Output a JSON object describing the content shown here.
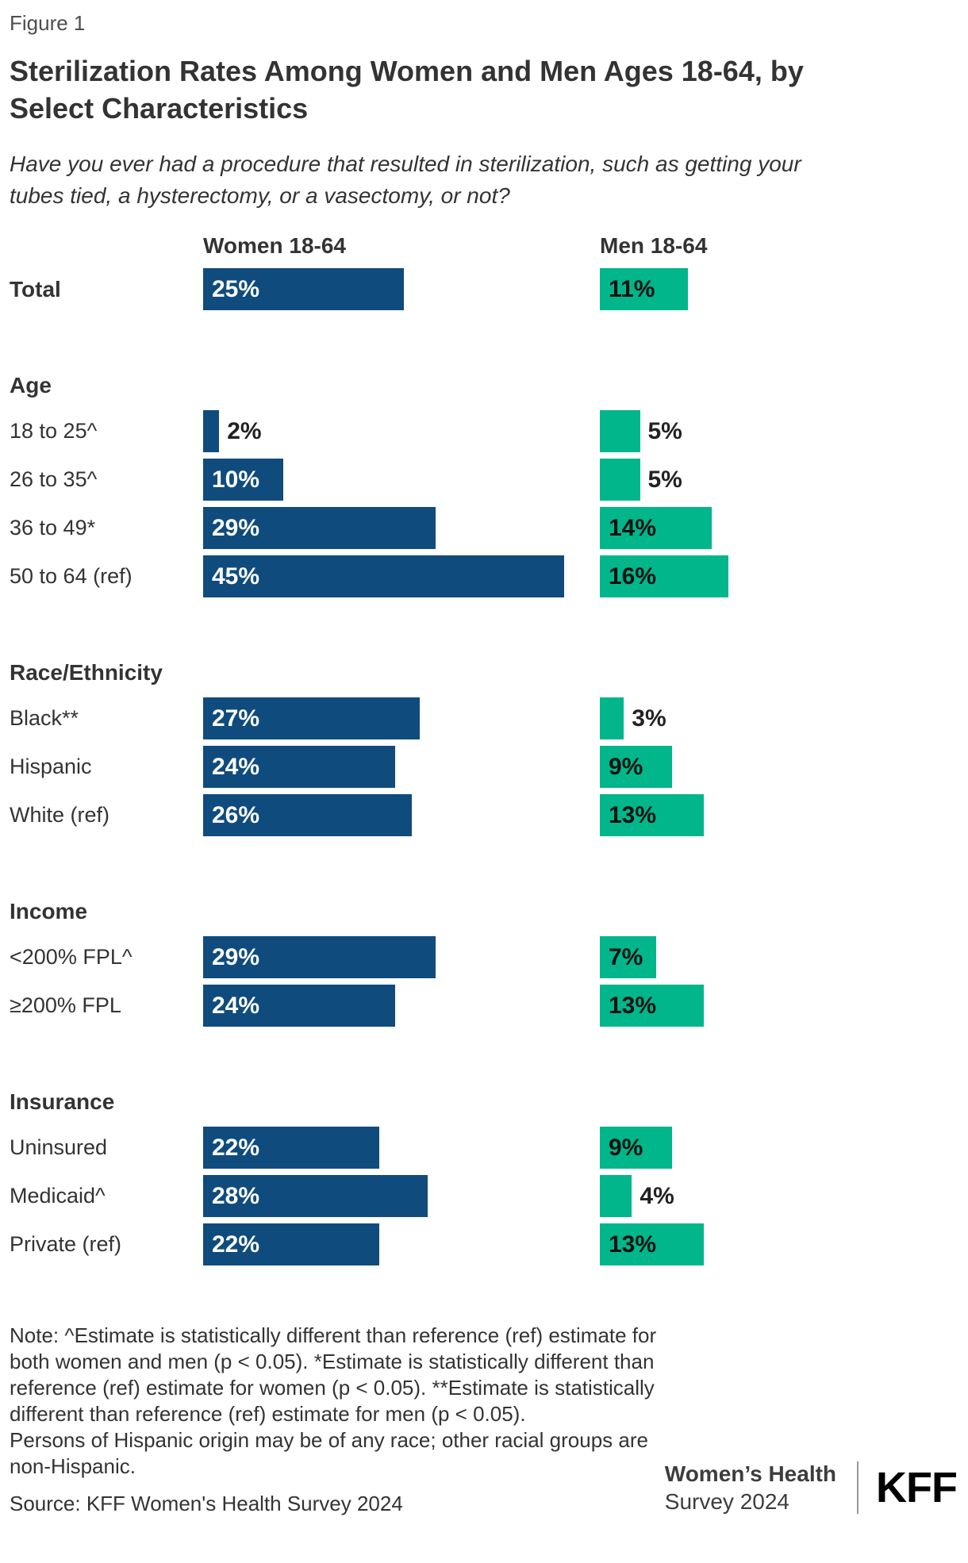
{
  "header": {
    "figure_label": "Figure 1",
    "title_lines": [
      "Sterilization Rates Among Women and Men Ages 18-64, by",
      "Select Characteristics"
    ],
    "subtitle_lines": [
      "Have you ever had a procedure that resulted in sterilization, such as getting your",
      "tubes tied, a hysterectomy, or a vasectomy, or not?"
    ]
  },
  "chart_data": {
    "type": "bar",
    "orientation": "horizontal",
    "unit": "%",
    "value_range": [
      0,
      45
    ],
    "grid": false,
    "legend_position": "column-headers-top",
    "series": [
      {
        "name": "Women 18-64",
        "color": "#0F4B7D"
      },
      {
        "name": "Men 18-64",
        "color": "#00B68A"
      }
    ],
    "sections": [
      {
        "header": null,
        "rows": [
          {
            "label": "Total",
            "bold": true,
            "values": [
              25,
              11
            ]
          }
        ]
      },
      {
        "header": "Age",
        "rows": [
          {
            "label": "18 to 25^",
            "values": [
              2,
              5
            ]
          },
          {
            "label": "26 to 35^",
            "values": [
              10,
              5
            ]
          },
          {
            "label": "36 to 49*",
            "values": [
              29,
              14
            ]
          },
          {
            "label": "50 to 64 (ref)",
            "values": [
              45,
              16
            ]
          }
        ]
      },
      {
        "header": "Race/Ethnicity",
        "rows": [
          {
            "label": "Black**",
            "values": [
              27,
              3
            ]
          },
          {
            "label": "Hispanic",
            "values": [
              24,
              9
            ]
          },
          {
            "label": "White (ref)",
            "values": [
              26,
              13
            ]
          }
        ]
      },
      {
        "header": "Income",
        "rows": [
          {
            "label": "<200% FPL^",
            "values": [
              29,
              7
            ]
          },
          {
            "label": "≥200% FPL",
            "values": [
              24,
              13
            ]
          }
        ]
      },
      {
        "header": "Insurance",
        "rows": [
          {
            "label": "Uninsured",
            "values": [
              22,
              9
            ]
          },
          {
            "label": "Medicaid^",
            "values": [
              28,
              4
            ]
          },
          {
            "label": "Private (ref)",
            "values": [
              22,
              13
            ]
          }
        ]
      }
    ]
  },
  "footer": {
    "note_lines": [
      "Note: ^Estimate is statistically different than reference (ref) estimate for",
      "both women and men (p < 0.05). *Estimate is statistically different than",
      "reference (ref) estimate for women (p < 0.05). **Estimate is statistically",
      "different than reference (ref) estimate for men (p < 0.05).",
      "Persons of Hispanic origin may be of any race; other racial groups are",
      "non-Hispanic."
    ],
    "source": "Source: KFF Women's Health Survey 2024",
    "brand_line1": "Women’s Health",
    "brand_line2": "Survey 2024",
    "logo": "KFF"
  }
}
